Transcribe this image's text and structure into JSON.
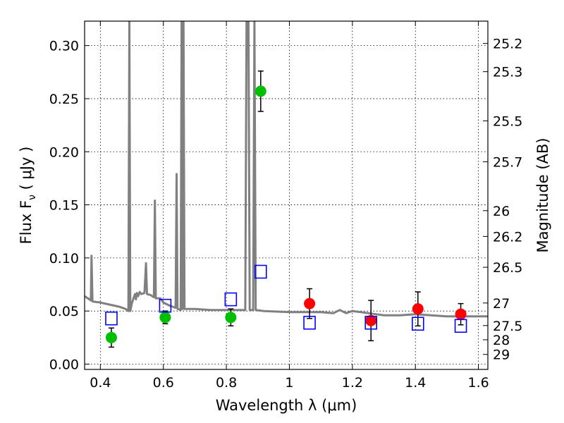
{
  "chart_data": {
    "type": "scatter",
    "xlabel": "Wavelength  λ (μm)",
    "ylabel": "Flux  F",
    "ylabel_sub": "ν",
    "ylabel_unit": "  ( μJy )",
    "y2label": "Magnitude (AB)",
    "xlim": [
      0.35,
      1.63
    ],
    "ylim": [
      -0.005,
      0.323
    ],
    "grid": true,
    "x_ticks": [
      {
        "value": 0.4,
        "label": "0.4"
      },
      {
        "value": 0.6,
        "label": "0.6"
      },
      {
        "value": 0.8,
        "label": "0.8"
      },
      {
        "value": 1.0,
        "label": "1"
      },
      {
        "value": 1.2,
        "label": "1.2"
      },
      {
        "value": 1.4,
        "label": "1.4"
      },
      {
        "value": 1.6,
        "label": "1.6"
      }
    ],
    "y_ticks": [
      {
        "value": 0.0,
        "label": "0.00"
      },
      {
        "value": 0.05,
        "label": "0.05"
      },
      {
        "value": 0.1,
        "label": "0.10"
      },
      {
        "value": 0.15,
        "label": "0.15"
      },
      {
        "value": 0.2,
        "label": "0.20"
      },
      {
        "value": 0.25,
        "label": "0.25"
      },
      {
        "value": 0.3,
        "label": "0.30"
      }
    ],
    "y2_ticks": [
      {
        "value": 25.2,
        "label": "25.2"
      },
      {
        "value": 25.3,
        "label": "25.3"
      },
      {
        "value": 25.5,
        "label": "25.5"
      },
      {
        "value": 25.7,
        "label": "25.7"
      },
      {
        "value": 26.0,
        "label": "26"
      },
      {
        "value": 26.2,
        "label": "26.2"
      },
      {
        "value": 26.5,
        "label": "26.5"
      },
      {
        "value": 27.0,
        "label": "27"
      },
      {
        "value": 27.5,
        "label": "27.5"
      },
      {
        "value": 28.0,
        "label": "28"
      },
      {
        "value": 29.0,
        "label": "29"
      }
    ],
    "series": [
      {
        "kind": "line",
        "color": "#808080",
        "points": [
          [
            0.35,
            0.064
          ],
          [
            0.37,
            0.06
          ],
          [
            0.372,
            0.102
          ],
          [
            0.375,
            0.059
          ],
          [
            0.4,
            0.058
          ],
          [
            0.43,
            0.056
          ],
          [
            0.46,
            0.054
          ],
          [
            0.48,
            0.052
          ],
          [
            0.489,
            0.05
          ],
          [
            0.492,
            0.323
          ],
          [
            0.495,
            0.05
          ],
          [
            0.5,
            0.057
          ],
          [
            0.505,
            0.062
          ],
          [
            0.51,
            0.066
          ],
          [
            0.513,
            0.061
          ],
          [
            0.516,
            0.067
          ],
          [
            0.52,
            0.064
          ],
          [
            0.525,
            0.068
          ],
          [
            0.53,
            0.066
          ],
          [
            0.54,
            0.067
          ],
          [
            0.545,
            0.095
          ],
          [
            0.548,
            0.066
          ],
          [
            0.56,
            0.065
          ],
          [
            0.57,
            0.063
          ],
          [
            0.573,
            0.154
          ],
          [
            0.576,
            0.062
          ],
          [
            0.59,
            0.062
          ],
          [
            0.6,
            0.058
          ],
          [
            0.62,
            0.055
          ],
          [
            0.63,
            0.054
          ],
          [
            0.639,
            0.053
          ],
          [
            0.642,
            0.179
          ],
          [
            0.645,
            0.052
          ],
          [
            0.655,
            0.051
          ],
          [
            0.658,
            0.323
          ],
          [
            0.661,
            0.052
          ],
          [
            0.664,
            0.323
          ],
          [
            0.667,
            0.052
          ],
          [
            0.675,
            0.052
          ],
          [
            0.7,
            0.052
          ],
          [
            0.75,
            0.051
          ],
          [
            0.8,
            0.051
          ],
          [
            0.85,
            0.051
          ],
          [
            0.86,
            0.051
          ],
          [
            0.864,
            0.323
          ],
          [
            0.87,
            0.323
          ],
          [
            0.874,
            0.051
          ],
          [
            0.885,
            0.051
          ],
          [
            0.889,
            0.323
          ],
          [
            0.893,
            0.051
          ],
          [
            0.92,
            0.05
          ],
          [
            1.0,
            0.049
          ],
          [
            1.1,
            0.049
          ],
          [
            1.14,
            0.048
          ],
          [
            1.16,
            0.051
          ],
          [
            1.18,
            0.048
          ],
          [
            1.2,
            0.05
          ],
          [
            1.25,
            0.048
          ],
          [
            1.3,
            0.046
          ],
          [
            1.35,
            0.046
          ],
          [
            1.4,
            0.047
          ],
          [
            1.45,
            0.046
          ],
          [
            1.5,
            0.045
          ],
          [
            1.55,
            0.045
          ],
          [
            1.63,
            0.045
          ]
        ]
      },
      {
        "kind": "points",
        "marker": "circle",
        "color": "#00bf00",
        "points": [
          {
            "x": 0.435,
            "y": 0.025,
            "err": 0.009
          },
          {
            "x": 0.606,
            "y": 0.044,
            "err": 0.006
          },
          {
            "x": 0.814,
            "y": 0.044,
            "err": 0.008
          },
          {
            "x": 0.909,
            "y": 0.257,
            "err": 0.019
          }
        ]
      },
      {
        "kind": "points",
        "marker": "circle",
        "color": "#ff0000",
        "points": [
          {
            "x": 1.064,
            "y": 0.057,
            "err": 0.014
          },
          {
            "x": 1.259,
            "y": 0.041,
            "err": 0.019
          },
          {
            "x": 1.408,
            "y": 0.052,
            "err": 0.016
          },
          {
            "x": 1.544,
            "y": 0.047,
            "err": 0.01
          }
        ]
      },
      {
        "kind": "points",
        "marker": "square",
        "color": "#0000ff",
        "points": [
          {
            "x": 0.435,
            "y": 0.043
          },
          {
            "x": 0.606,
            "y": 0.055
          },
          {
            "x": 0.814,
            "y": 0.061
          },
          {
            "x": 0.909,
            "y": 0.087
          },
          {
            "x": 1.064,
            "y": 0.039
          },
          {
            "x": 1.259,
            "y": 0.039
          },
          {
            "x": 1.408,
            "y": 0.038
          },
          {
            "x": 1.544,
            "y": 0.036
          }
        ]
      }
    ]
  }
}
